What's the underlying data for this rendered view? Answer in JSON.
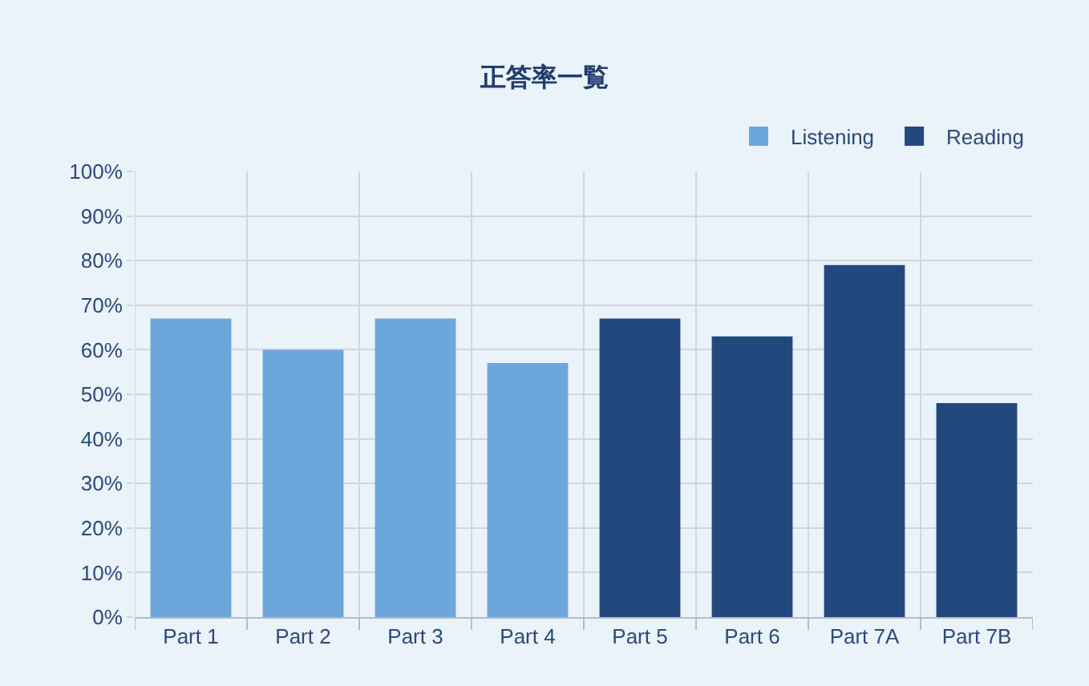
{
  "chart_data": {
    "type": "bar",
    "title": "正答率一覧",
    "categories": [
      "Part 1",
      "Part 2",
      "Part 3",
      "Part 4",
      "Part 5",
      "Part 6",
      "Part 7A",
      "Part 7B"
    ],
    "series": [
      {
        "name": "Listening",
        "color": "#6ca6db",
        "values": [
          67,
          60,
          67,
          57,
          null,
          null,
          null,
          null
        ]
      },
      {
        "name": "Reading",
        "color": "#23487e",
        "values": [
          null,
          null,
          null,
          null,
          67,
          63,
          79,
          48
        ]
      }
    ],
    "ylim": [
      0,
      100
    ],
    "yticks": [
      {
        "value": 0,
        "label": "0%"
      },
      {
        "value": 10,
        "label": "10%"
      },
      {
        "value": 20,
        "label": "20%"
      },
      {
        "value": 30,
        "label": "30%"
      },
      {
        "value": 40,
        "label": "40%"
      },
      {
        "value": 50,
        "label": "50%"
      },
      {
        "value": 60,
        "label": "60%"
      },
      {
        "value": 70,
        "label": "70%"
      },
      {
        "value": 80,
        "label": "80%"
      },
      {
        "value": 90,
        "label": "90%"
      },
      {
        "value": 100,
        "label": "100%"
      }
    ],
    "grid": true,
    "legend": "top right"
  }
}
